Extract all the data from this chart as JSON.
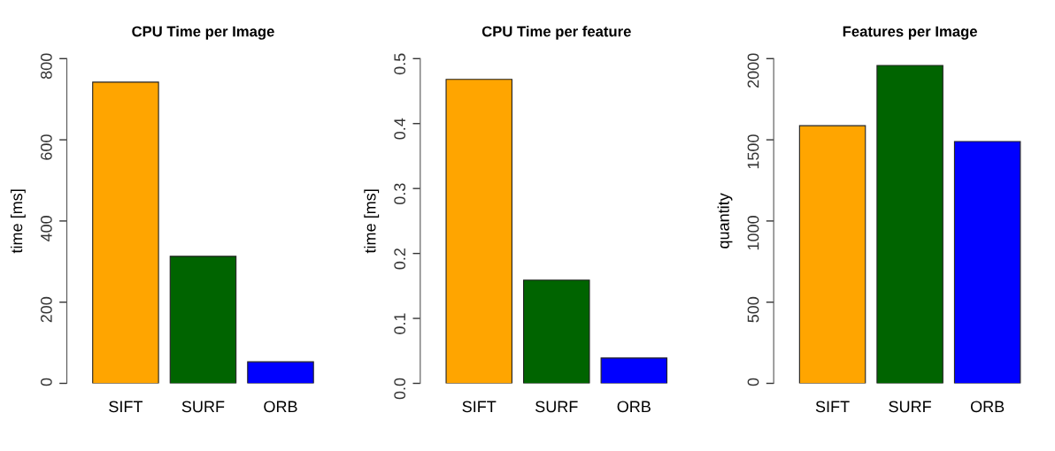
{
  "chart_data": [
    {
      "type": "bar",
      "title": "CPU Time per Image",
      "ylabel": "time [ms]",
      "categories": [
        "SIFT",
        "SURF",
        "ORB"
      ],
      "values": [
        742,
        313,
        53
      ],
      "colors": [
        "#ffa500",
        "#006400",
        "#0000ff"
      ],
      "ylim": [
        0,
        800
      ],
      "yticks": [
        0,
        200,
        400,
        600,
        800
      ],
      "grid": false,
      "legend": false
    },
    {
      "type": "bar",
      "title": "CPU Time per feature",
      "ylabel": "time [ms]",
      "categories": [
        "SIFT",
        "SURF",
        "ORB"
      ],
      "values": [
        0.468,
        0.159,
        0.039
      ],
      "colors": [
        "#ffa500",
        "#006400",
        "#0000ff"
      ],
      "ylim": [
        0,
        0.5
      ],
      "yticks": [
        {
          "value": 0,
          "label": "0.0"
        },
        0.1,
        0.2,
        0.3,
        0.4,
        0.5
      ],
      "grid": false,
      "legend": false
    },
    {
      "type": "bar",
      "title": "Features per Image",
      "ylabel": "quantity",
      "categories": [
        "SIFT",
        "SURF",
        "ORB"
      ],
      "values": [
        1587,
        1958,
        1490
      ],
      "colors": [
        "#ffa500",
        "#006400",
        "#0000ff"
      ],
      "ylim": [
        0,
        2000
      ],
      "yticks": [
        0,
        500,
        1000,
        1500,
        2000
      ],
      "grid": false,
      "legend": false
    }
  ]
}
